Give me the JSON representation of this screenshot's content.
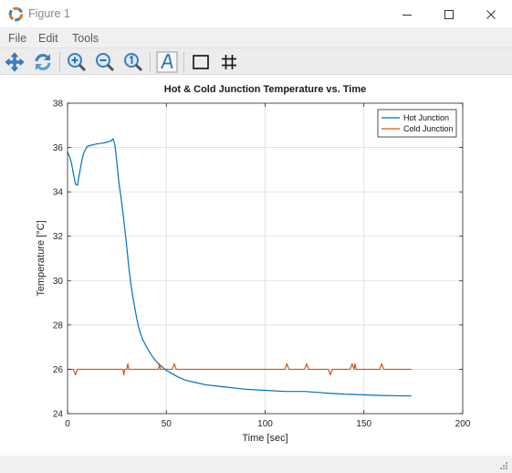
{
  "window": {
    "title": "Figure 1",
    "app_icon": "octave-icon",
    "controls": [
      "minimize-icon",
      "maximize-icon",
      "close-icon"
    ]
  },
  "menu": {
    "items": [
      "File",
      "Edit",
      "Tools"
    ]
  },
  "toolbar": {
    "tools": [
      {
        "name": "pan",
        "icon": "pan-arrows-icon"
      },
      {
        "name": "rotate",
        "icon": "rotate-icon"
      },
      {
        "name": "zoom-in",
        "icon": "zoom-in-icon"
      },
      {
        "name": "zoom-out",
        "icon": "zoom-out-icon"
      },
      {
        "name": "zoom-reset",
        "icon": "zoom-reset-icon"
      },
      {
        "name": "insert-text",
        "icon": "text-a-icon"
      },
      {
        "name": "toggle-axes-box",
        "icon": "square-icon"
      },
      {
        "name": "toggle-grid",
        "icon": "grid-icon"
      }
    ]
  },
  "colors": {
    "hot": "#0072bd",
    "cold": "#d95319",
    "grid": "#dcdcdc",
    "axis": "#262626"
  },
  "chart_data": {
    "type": "line",
    "title": "Hot & Cold Junction Temperature vs. Time",
    "xlabel": "Time [sec]",
    "ylabel": "Temperature [°C]",
    "xlim": [
      0,
      200
    ],
    "ylim": [
      24,
      38
    ],
    "xticks": [
      0,
      50,
      100,
      150,
      200
    ],
    "yticks": [
      24,
      26,
      28,
      30,
      32,
      34,
      36,
      38
    ],
    "grid": true,
    "legend_position": "top-right",
    "series": [
      {
        "name": "Hot Junction",
        "color": "#0072bd",
        "x": [
          0,
          1,
          2,
          3,
          4,
          5,
          6,
          7,
          8,
          9,
          10,
          12,
          14,
          16,
          18,
          20,
          22,
          23,
          24,
          25,
          26,
          27,
          28,
          29,
          30,
          31,
          32,
          33,
          34,
          35,
          36,
          37,
          38,
          40,
          42,
          44,
          46,
          48,
          50,
          53,
          56,
          60,
          65,
          70,
          75,
          80,
          90,
          100,
          110,
          120,
          128,
          132,
          136,
          140,
          150,
          155,
          160,
          165,
          170,
          174
        ],
        "y": [
          35.8,
          35.6,
          35.3,
          34.8,
          34.35,
          34.3,
          34.8,
          35.3,
          35.7,
          35.9,
          36.05,
          36.1,
          36.15,
          36.18,
          36.2,
          36.25,
          36.3,
          36.4,
          36.1,
          35.3,
          34.4,
          33.8,
          33.1,
          32.3,
          31.5,
          30.6,
          29.9,
          29.3,
          28.8,
          28.3,
          27.9,
          27.6,
          27.35,
          27.0,
          26.7,
          26.45,
          26.25,
          26.1,
          25.95,
          25.8,
          25.65,
          25.5,
          25.4,
          25.3,
          25.25,
          25.2,
          25.1,
          25.05,
          25.0,
          25.0,
          24.95,
          24.92,
          24.9,
          24.88,
          24.85,
          24.83,
          24.82,
          24.81,
          24.8,
          24.8
        ]
      },
      {
        "name": "Cold Junction",
        "color": "#d95319",
        "x": [
          0,
          3,
          4,
          5,
          28,
          28.5,
          29,
          30,
          30.5,
          31,
          46,
          46.5,
          47,
          53,
          54,
          55,
          110,
          111,
          112,
          120,
          121,
          122,
          132,
          133,
          134,
          143,
          144,
          145,
          145.5,
          146,
          147,
          158,
          159,
          160,
          174
        ],
        "y": [
          26.0,
          26.0,
          25.75,
          26.0,
          26.0,
          25.75,
          26.0,
          26.0,
          26.25,
          26.0,
          26.0,
          26.25,
          26.0,
          26.0,
          26.25,
          26.0,
          26.0,
          26.25,
          26.0,
          26.0,
          26.25,
          26.0,
          26.0,
          25.75,
          26.0,
          26.0,
          26.25,
          26.0,
          26.25,
          26.0,
          26.0,
          26.0,
          26.25,
          26.0,
          26.0
        ]
      }
    ]
  }
}
